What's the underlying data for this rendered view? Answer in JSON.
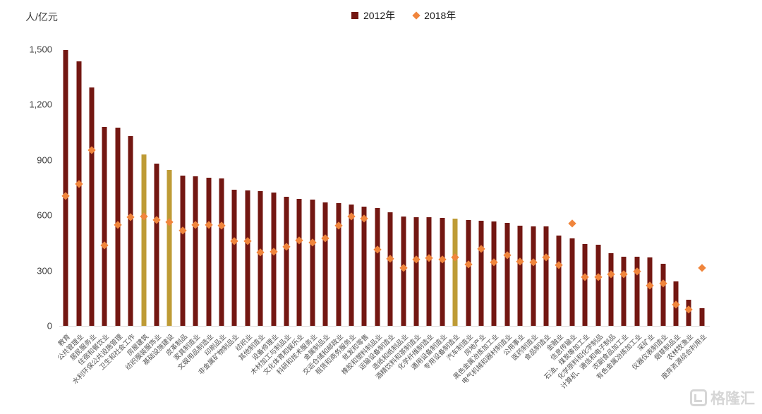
{
  "header": {
    "y_axis_title": "人/亿元",
    "legend": [
      {
        "label": "2012年",
        "marker": "square",
        "color": "#731712"
      },
      {
        "label": "2018年",
        "marker": "diamond",
        "color": "#F0853C"
      }
    ]
  },
  "watermark": {
    "brand": "格隆汇"
  },
  "colors": {
    "bar_2012": "#731712",
    "bar_highlight": "#BE9B35",
    "marker_2018": "#F0853C",
    "axis_text": "#404040",
    "label_text": "#555555"
  },
  "chart_data": {
    "type": "bar",
    "title": "",
    "xlabel": "",
    "ylabel": "人/亿元",
    "ylim": [
      0,
      1500
    ],
    "ytick_labels": [
      "0",
      "300",
      "600",
      "900",
      "1,200",
      "1,500"
    ],
    "ytick_values": [
      0,
      300,
      600,
      900,
      1200,
      1500
    ],
    "grid": false,
    "legend_position": "top-center",
    "categories": [
      "教育",
      "公共管理业",
      "居民服务业",
      "住宿和餐饮业",
      "水利环保公共设施管理",
      "卫生和社会工作",
      "房屋建筑",
      "纺织服装服饰业",
      "基础设施建设",
      "皮革制品",
      "家具制造业",
      "文娱用品制造业",
      "印刷品业",
      "非金属矿物制品业",
      "纺织业",
      "其他制造业",
      "设备修理业",
      "木材加工与制品业",
      "文化体育和娱乐业",
      "科研和技术服务业",
      "金属制品业",
      "交运仓储和邮政业",
      "租赁和商务服务业",
      "批发和零售",
      "橡胶和塑料制品业",
      "运输设备制造业",
      "造纸和纸制品业",
      "酒精饮料和茶制造业",
      "化学纤维制造业",
      "通用设备制造业",
      "专用设备制造业",
      "汽车制造业",
      "房地产业",
      "黑色金属冶炼加工业",
      "电气机械和器材制造业",
      "公用事业",
      "医药制造业",
      "食品制造业",
      "金融业",
      "信息传输业",
      "石油、煤炭等加工业",
      "化学原料和化学制品",
      "计算机、通信和电子制品",
      "农副食品加工业",
      "有色金属冶炼加工业",
      "采矿业",
      "仪器仪表制造业",
      "烟草制品业",
      "农林牧渔业",
      "废弃资源综合利用业"
    ],
    "series": [
      {
        "name": "2012年",
        "type": "bar",
        "color": "#731712",
        "values": [
          1495,
          1435,
          1295,
          1080,
          1075,
          1030,
          930,
          880,
          845,
          815,
          810,
          805,
          800,
          740,
          735,
          730,
          725,
          700,
          690,
          685,
          670,
          665,
          660,
          645,
          640,
          615,
          595,
          590,
          590,
          585,
          580,
          575,
          570,
          565,
          560,
          545,
          540,
          540,
          490,
          475,
          445,
          440,
          395,
          375,
          375,
          370,
          335,
          240,
          140,
          95
        ]
      },
      {
        "name": "2018年",
        "type": "scatter",
        "marker": "diamond",
        "color": "#F0853C",
        "values": [
          705,
          770,
          955,
          440,
          550,
          590,
          595,
          575,
          565,
          520,
          550,
          550,
          545,
          460,
          460,
          400,
          405,
          430,
          465,
          455,
          475,
          545,
          595,
          585,
          415,
          365,
          315,
          360,
          370,
          360,
          375,
          335,
          420,
          345,
          385,
          350,
          345,
          375,
          330,
          555,
          265,
          265,
          280,
          280,
          295,
          220,
          230,
          115,
          90,
          315
        ]
      }
    ],
    "highlighted_bars": {
      "color": "#BE9B35",
      "categories": [
        "房屋建筑",
        "基础设施建设",
        "专用设备制造业"
      ]
    }
  }
}
